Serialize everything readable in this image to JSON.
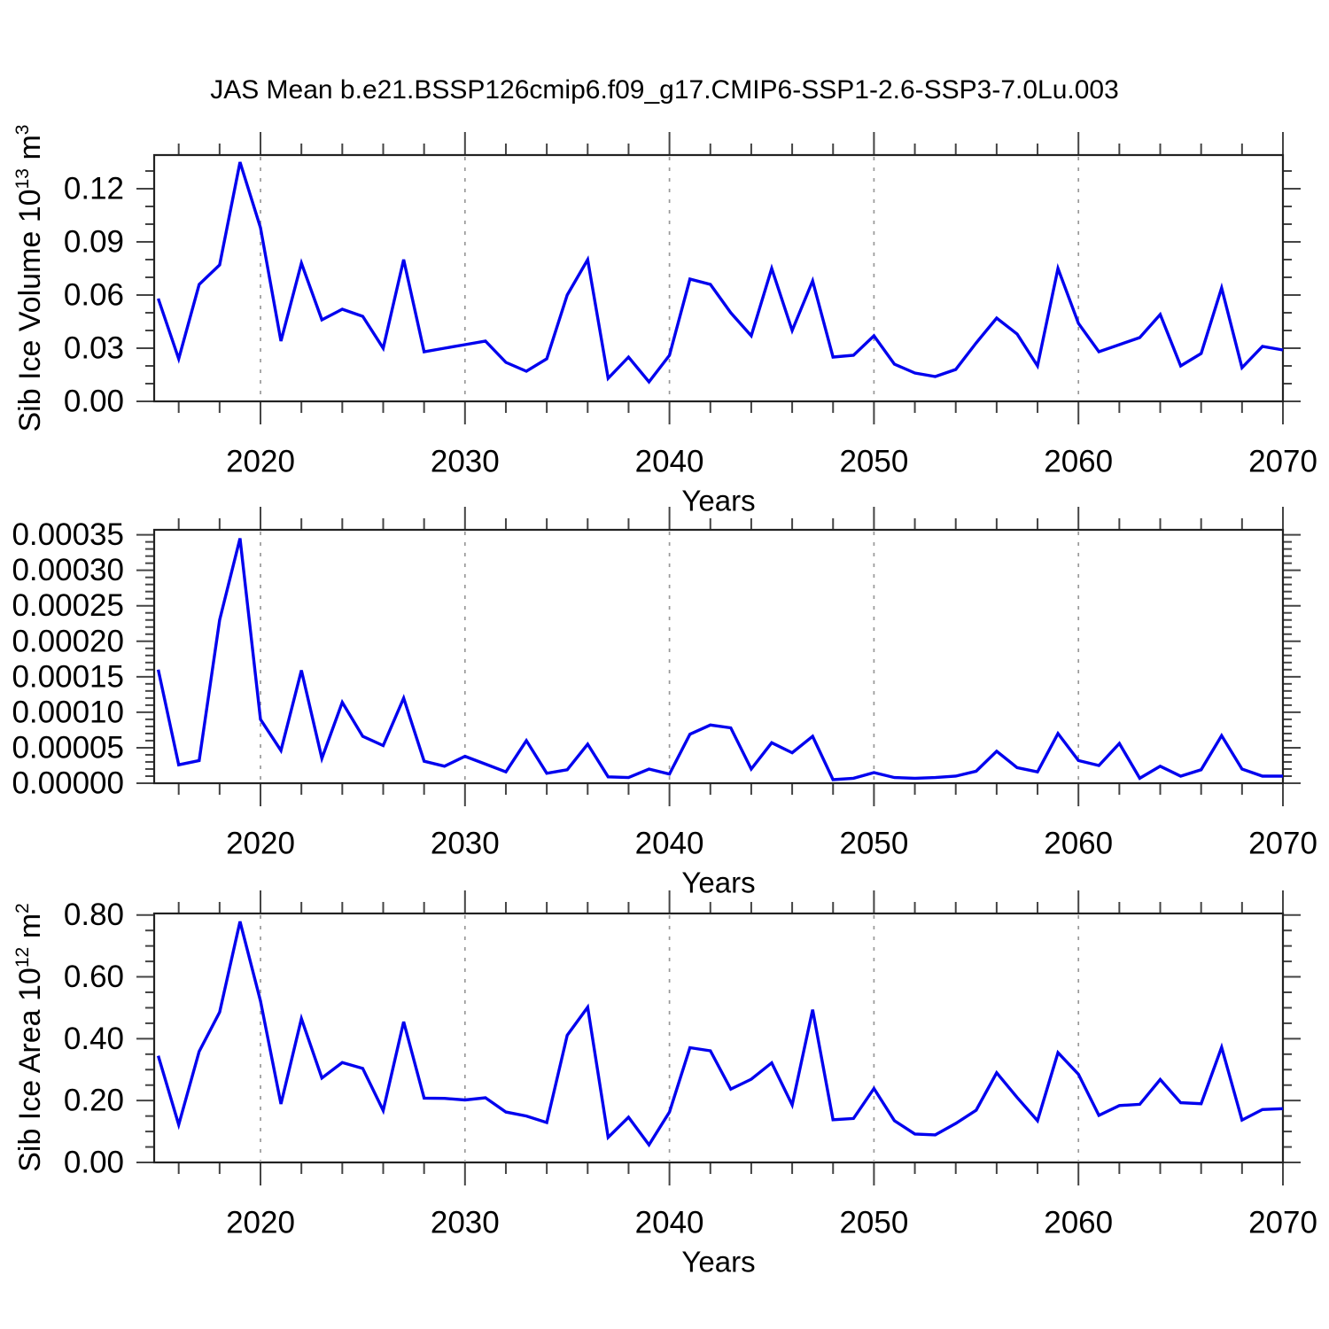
{
  "title": "JAS Mean b.e21.BSSP126cmip6.f09_g17.CMIP6-SSP1-2.6-SSP3-7.0Lu.003",
  "colors": {
    "line": "#0000ee",
    "axis": "#222222",
    "tick": "#444444",
    "grid": "#999999",
    "text": "#000000",
    "background": "#ffffff"
  },
  "chart_data": {
    "type": "line",
    "title": "JAS Mean b.e21.BSSP126cmip6.f09_g17.CMIP6-SSP1-2.6-SSP3-7.0Lu.003",
    "xlabel": "Years",
    "x_range": [
      2014.8,
      2070
    ],
    "x_major_ticks": [
      2020,
      2030,
      2040,
      2050,
      2060,
      2070
    ],
    "x_tick_labels": [
      "2020",
      "2030",
      "2040",
      "2050",
      "2060",
      "2070"
    ],
    "x_minor_tick_step": 2,
    "grid": {
      "vertical_dashed_years": [
        2020,
        2030,
        2040,
        2050,
        2060
      ],
      "horizontal": false
    },
    "legend": "none",
    "years": [
      2015,
      2016,
      2017,
      2018,
      2019,
      2020,
      2021,
      2022,
      2023,
      2024,
      2025,
      2026,
      2027,
      2028,
      2029,
      2030,
      2031,
      2032,
      2033,
      2034,
      2035,
      2036,
      2037,
      2038,
      2039,
      2040,
      2041,
      2042,
      2043,
      2044,
      2045,
      2046,
      2047,
      2048,
      2049,
      2050,
      2051,
      2052,
      2053,
      2054,
      2055,
      2056,
      2057,
      2058,
      2059,
      2060,
      2061,
      2062,
      2063,
      2064,
      2065,
      2066,
      2067,
      2068,
      2069,
      2070
    ],
    "panels": [
      {
        "name": "sib-ice-volume",
        "ylabel_plain": "Sib Ice Volume 10^13 m^3",
        "ylabel_segments": [
          [
            "Sib Ice Volume 10",
            false
          ],
          [
            "13",
            true
          ],
          [
            " m",
            false
          ],
          [
            "3",
            true
          ]
        ],
        "ylim": [
          0,
          0.139
        ],
        "ytick_values": [
          0.0,
          0.03,
          0.06,
          0.09,
          0.12
        ],
        "ytick_labels": [
          "0.00",
          "0.03",
          "0.06",
          "0.09",
          "0.12"
        ],
        "yminor_step": 0.01,
        "values": [
          0.058,
          0.024,
          0.066,
          0.077,
          0.135,
          0.098,
          0.034,
          0.078,
          0.046,
          0.052,
          0.048,
          0.03,
          0.08,
          0.028,
          0.03,
          0.032,
          0.034,
          0.022,
          0.017,
          0.024,
          0.06,
          0.08,
          0.013,
          0.025,
          0.011,
          0.026,
          0.069,
          0.066,
          0.05,
          0.037,
          0.075,
          0.04,
          0.068,
          0.025,
          0.026,
          0.037,
          0.021,
          0.016,
          0.014,
          0.018,
          0.033,
          0.047,
          0.038,
          0.02,
          0.075,
          0.044,
          0.028,
          0.032,
          0.036,
          0.049,
          0.02,
          0.027,
          0.064,
          0.019,
          0.031,
          0.029
        ]
      },
      {
        "name": "sib-ice-middle",
        "ylabel_plain": "",
        "ylabel_segments": [],
        "ylim": [
          0,
          0.000357
        ],
        "ytick_values": [
          0.0,
          5e-05,
          0.0001,
          0.00015,
          0.0002,
          0.00025,
          0.0003,
          0.00035
        ],
        "ytick_labels": [
          "0.00000",
          "0.00005",
          "0.00010",
          "0.00015",
          "0.00020",
          "0.00025",
          "0.00030",
          "0.00035"
        ],
        "yminor_step": 1e-05,
        "values": [
          0.00016,
          2.6e-05,
          3.2e-05,
          0.00023,
          0.000345,
          9e-05,
          4.6e-05,
          0.000159,
          3.5e-05,
          0.000114,
          6.6e-05,
          5.3e-05,
          0.00012,
          3.1e-05,
          2.4e-05,
          3.8e-05,
          2.7e-05,
          1.6e-05,
          6e-05,
          1.4e-05,
          1.9e-05,
          5.5e-05,
          9e-06,
          8e-06,
          2e-05,
          1.3e-05,
          6.9e-05,
          8.2e-05,
          7.8e-05,
          2e-05,
          5.7e-05,
          4.3e-05,
          6.6e-05,
          5e-06,
          7e-06,
          1.5e-05,
          8e-06,
          7e-06,
          8e-06,
          1e-05,
          1.7e-05,
          4.5e-05,
          2.2e-05,
          1.6e-05,
          7e-05,
          3.2e-05,
          2.5e-05,
          5.6e-05,
          7e-06,
          2.4e-05,
          1e-05,
          1.9e-05,
          6.7e-05,
          2e-05,
          1e-05,
          1e-05
        ]
      },
      {
        "name": "sib-ice-area",
        "ylabel_plain": "Sib Ice Area 10^12 m^2",
        "ylabel_segments": [
          [
            "Sib Ice Area 10",
            false
          ],
          [
            "12",
            true
          ],
          [
            " m",
            false
          ],
          [
            "2",
            true
          ]
        ],
        "ylim": [
          0,
          0.805
        ],
        "ytick_values": [
          0.0,
          0.2,
          0.4,
          0.6,
          0.8
        ],
        "ytick_labels": [
          "0.00",
          "0.20",
          "0.40",
          "0.60",
          "0.80"
        ],
        "yminor_step": 0.05,
        "values": [
          0.345,
          0.122,
          0.359,
          0.486,
          0.779,
          0.522,
          0.189,
          0.465,
          0.273,
          0.323,
          0.304,
          0.168,
          0.455,
          0.208,
          0.207,
          0.202,
          0.209,
          0.163,
          0.15,
          0.129,
          0.411,
          0.502,
          0.081,
          0.146,
          0.057,
          0.163,
          0.371,
          0.361,
          0.237,
          0.269,
          0.322,
          0.186,
          0.494,
          0.138,
          0.142,
          0.239,
          0.135,
          0.092,
          0.089,
          0.126,
          0.169,
          0.29,
          0.21,
          0.135,
          0.355,
          0.285,
          0.152,
          0.184,
          0.188,
          0.268,
          0.193,
          0.19,
          0.372,
          0.137,
          0.171,
          0.174
        ]
      }
    ]
  }
}
